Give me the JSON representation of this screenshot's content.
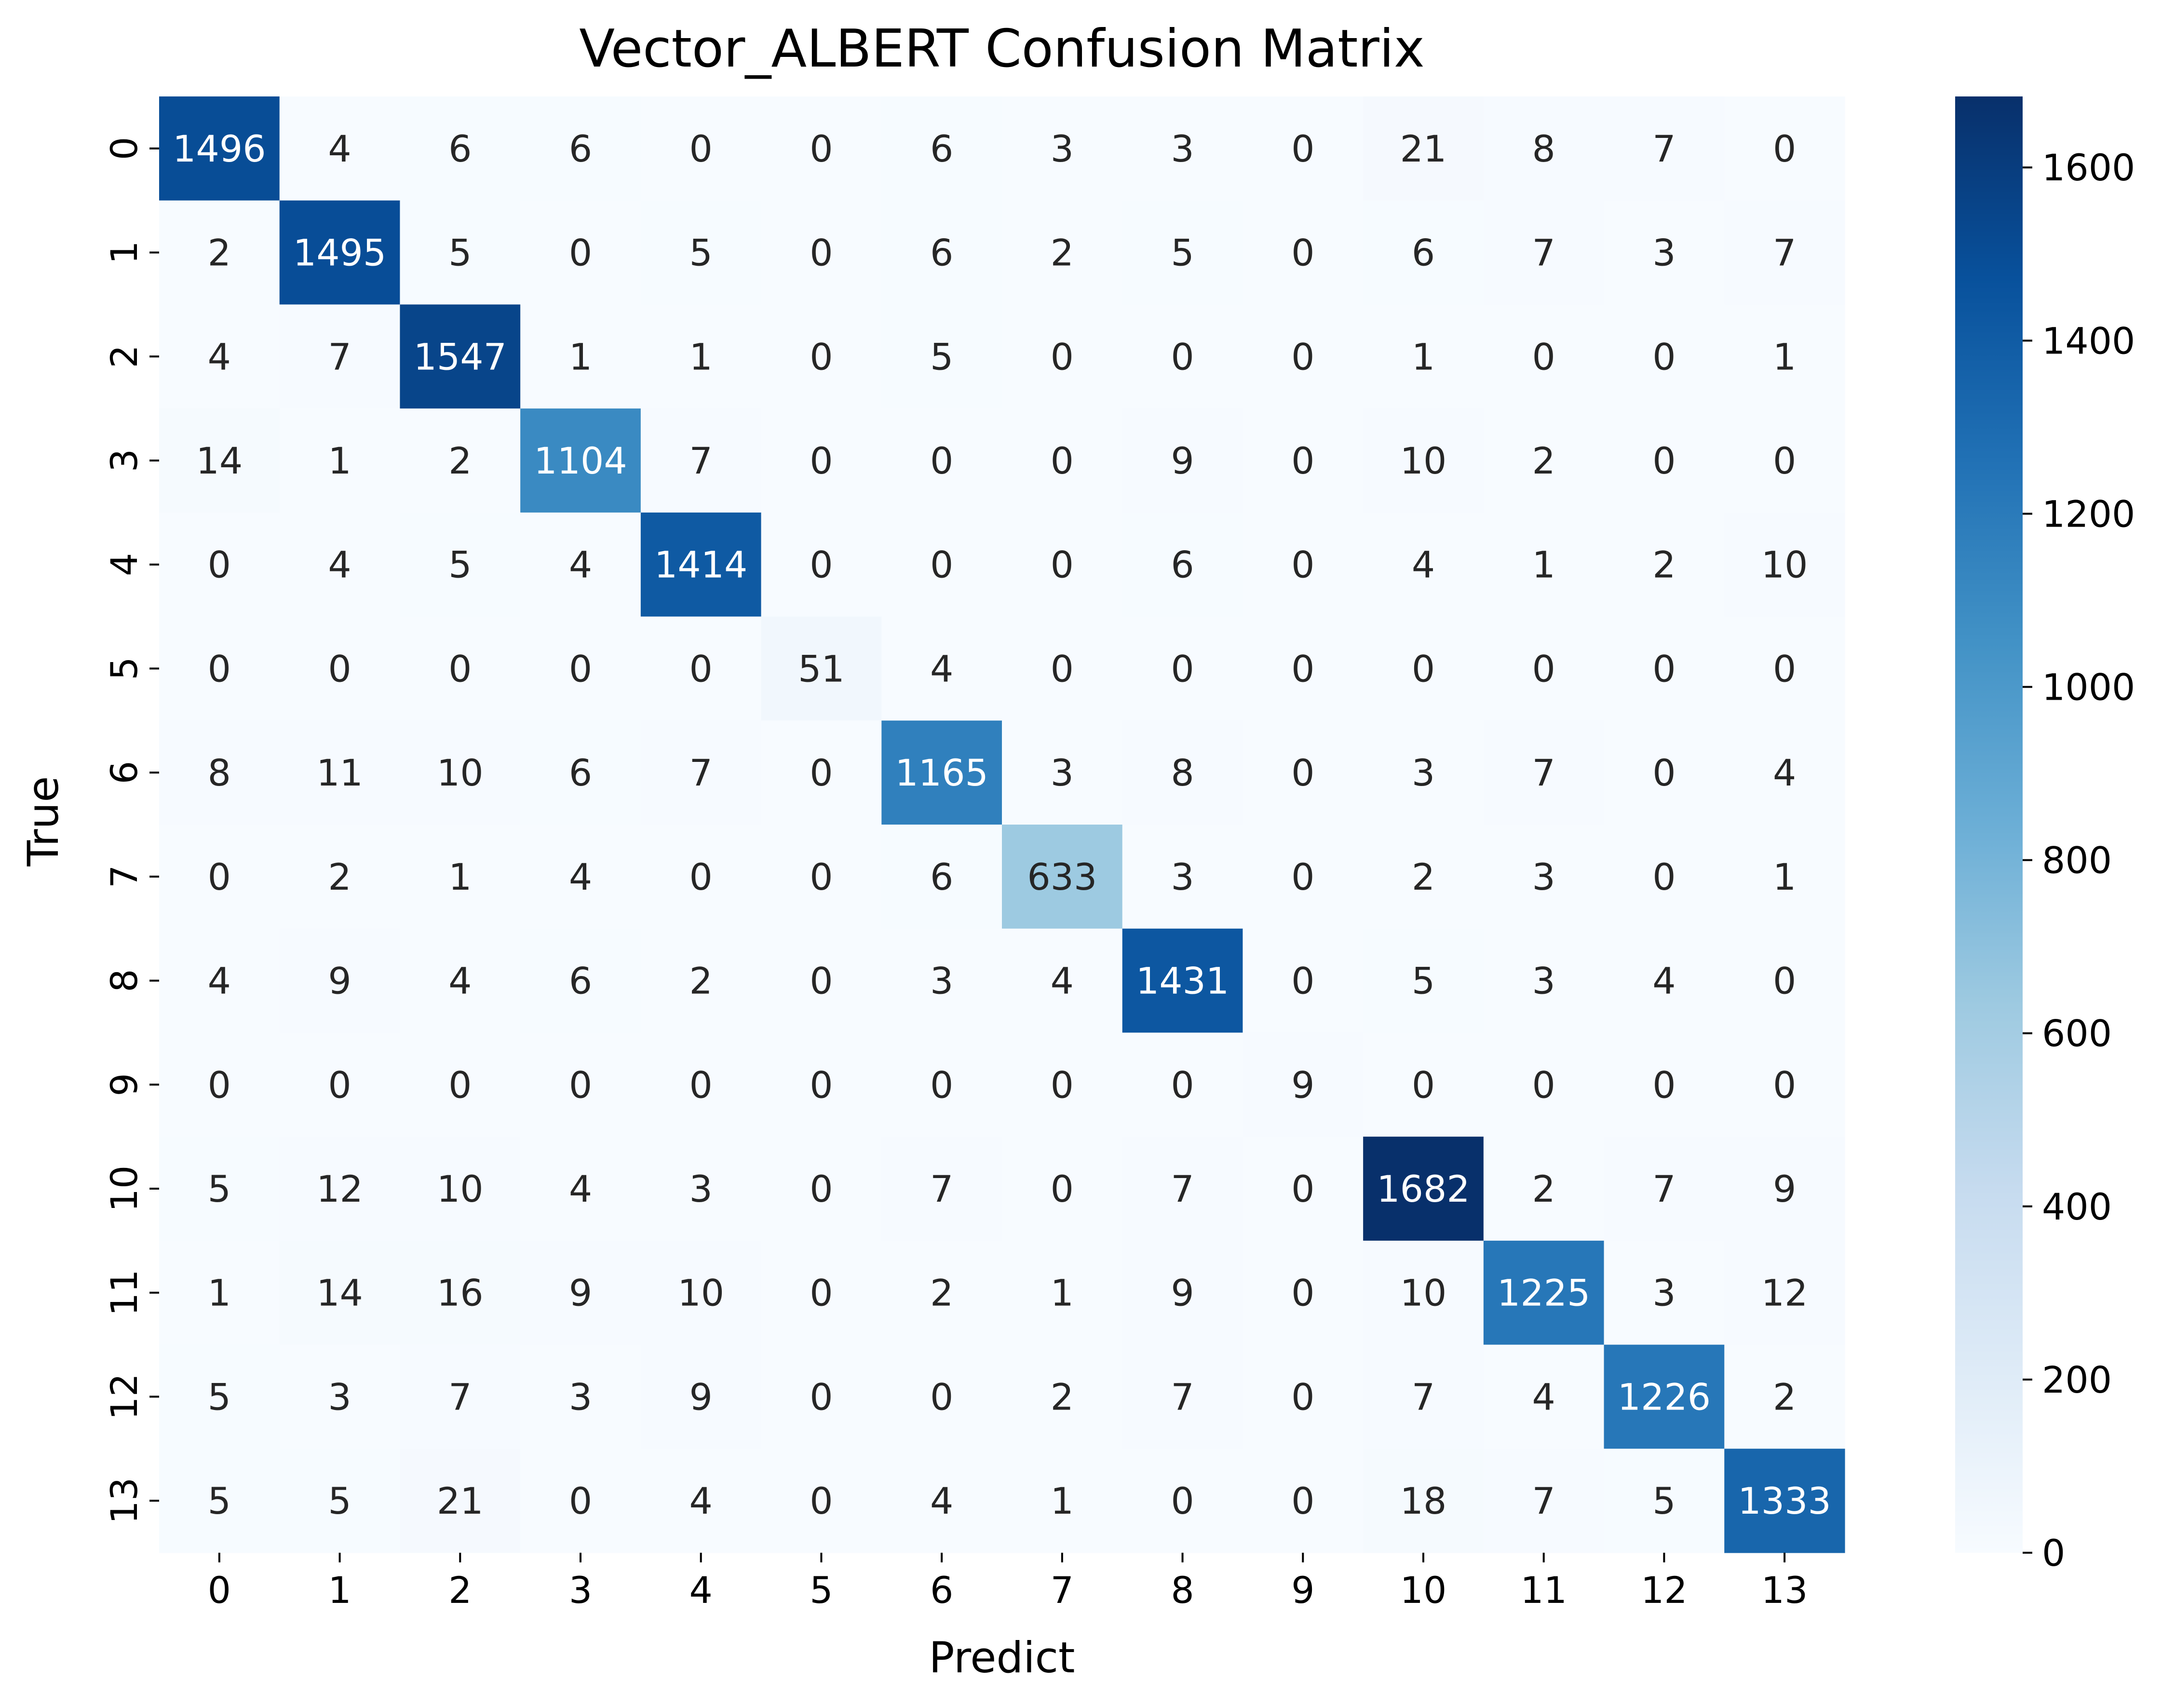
{
  "chart_data": {
    "type": "heatmap",
    "title": "Vector_ALBERT Confusion Matrix",
    "xlabel": "Predict",
    "ylabel": "True",
    "x_categories": [
      "0",
      "1",
      "2",
      "3",
      "4",
      "5",
      "6",
      "7",
      "8",
      "9",
      "10",
      "11",
      "12",
      "13"
    ],
    "y_categories": [
      "0",
      "1",
      "2",
      "3",
      "4",
      "5",
      "6",
      "7",
      "8",
      "9",
      "10",
      "11",
      "12",
      "13"
    ],
    "values": [
      [
        1496,
        4,
        6,
        6,
        0,
        0,
        6,
        3,
        3,
        0,
        21,
        8,
        7,
        0
      ],
      [
        2,
        1495,
        5,
        0,
        5,
        0,
        6,
        2,
        5,
        0,
        6,
        7,
        3,
        7
      ],
      [
        4,
        7,
        1547,
        1,
        1,
        0,
        5,
        0,
        0,
        0,
        1,
        0,
        0,
        1
      ],
      [
        14,
        1,
        2,
        1104,
        7,
        0,
        0,
        0,
        9,
        0,
        10,
        2,
        0,
        0
      ],
      [
        0,
        4,
        5,
        4,
        1414,
        0,
        0,
        0,
        6,
        0,
        4,
        1,
        2,
        10
      ],
      [
        0,
        0,
        0,
        0,
        0,
        51,
        4,
        0,
        0,
        0,
        0,
        0,
        0,
        0
      ],
      [
        8,
        11,
        10,
        6,
        7,
        0,
        1165,
        3,
        8,
        0,
        3,
        7,
        0,
        4
      ],
      [
        0,
        2,
        1,
        4,
        0,
        0,
        6,
        633,
        3,
        0,
        2,
        3,
        0,
        1
      ],
      [
        4,
        9,
        4,
        6,
        2,
        0,
        3,
        4,
        1431,
        0,
        5,
        3,
        4,
        0
      ],
      [
        0,
        0,
        0,
        0,
        0,
        0,
        0,
        0,
        0,
        9,
        0,
        0,
        0,
        0
      ],
      [
        5,
        12,
        10,
        4,
        3,
        0,
        7,
        0,
        7,
        0,
        1682,
        2,
        7,
        9
      ],
      [
        1,
        14,
        16,
        9,
        10,
        0,
        2,
        1,
        9,
        0,
        10,
        1225,
        3,
        12
      ],
      [
        5,
        3,
        7,
        3,
        9,
        0,
        0,
        2,
        7,
        0,
        7,
        4,
        1226,
        2
      ],
      [
        5,
        5,
        21,
        0,
        4,
        0,
        4,
        1,
        0,
        0,
        18,
        7,
        5,
        1333
      ]
    ],
    "colormap": "Blues",
    "vmin": 0,
    "vmax": 1682,
    "colorbar_ticks": [
      0,
      200,
      400,
      600,
      800,
      1000,
      1200,
      1400,
      1600
    ],
    "colorbar_tick_labels": [
      "0",
      "200",
      "400",
      "600",
      "800",
      "1000",
      "1200",
      "1400",
      "1600"
    ],
    "annotation_color_dark": "#262626",
    "annotation_color_light": "#ffffff"
  }
}
